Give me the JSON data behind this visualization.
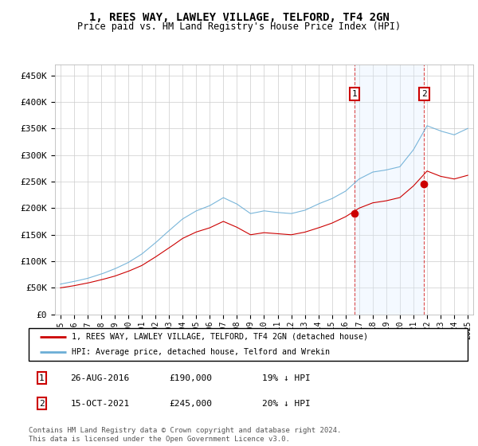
{
  "title": "1, REES WAY, LAWLEY VILLAGE, TELFORD, TF4 2GN",
  "subtitle": "Price paid vs. HM Land Registry's House Price Index (HPI)",
  "ylim": [
    0,
    470000
  ],
  "yticks": [
    0,
    50000,
    100000,
    150000,
    200000,
    250000,
    300000,
    350000,
    400000,
    450000
  ],
  "ytick_labels": [
    "£0",
    "£50K",
    "£100K",
    "£150K",
    "£200K",
    "£250K",
    "£300K",
    "£350K",
    "£400K",
    "£450K"
  ],
  "background_color": "#ffffff",
  "plot_bg_color": "#ffffff",
  "grid_color": "#cccccc",
  "sale1": {
    "date": 2016.65,
    "price": 190000,
    "label": "1"
  },
  "sale2": {
    "date": 2021.79,
    "price": 245000,
    "label": "2"
  },
  "annotation_box_color": "#cc0000",
  "hpi_color": "#6baed6",
  "price_color": "#cc0000",
  "shaded_region_color": "#ddeeff",
  "legend_property_label": "1, REES WAY, LAWLEY VILLAGE, TELFORD, TF4 2GN (detached house)",
  "legend_hpi_label": "HPI: Average price, detached house, Telford and Wrekin",
  "footnote": "Contains HM Land Registry data © Crown copyright and database right 2024.\nThis data is licensed under the Open Government Licence v3.0.",
  "table_rows": [
    {
      "num": "1",
      "date": "26-AUG-2016",
      "price": "£190,000",
      "hpi": "19% ↓ HPI"
    },
    {
      "num": "2",
      "date": "15-OCT-2021",
      "price": "£245,000",
      "hpi": "20% ↓ HPI"
    }
  ],
  "xlim_left": 1994.6,
  "xlim_right": 2025.4
}
